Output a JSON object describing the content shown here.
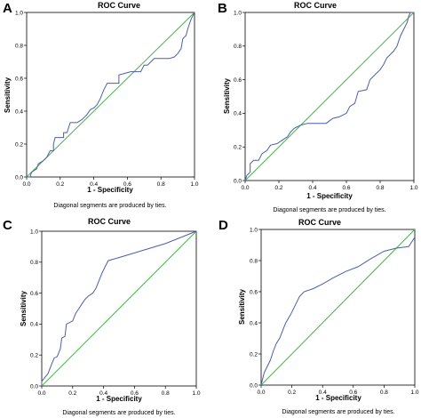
{
  "chart_data": [
    {
      "panel": "A",
      "type": "line",
      "title": "ROC Curve",
      "xlabel": "1 - Specificity",
      "ylabel": "Sensitivity",
      "note": "Diagonal segments are produced by ties.",
      "xlim": [
        0,
        1
      ],
      "ylim": [
        0,
        1
      ],
      "xticks": [
        "0.0",
        "0.2",
        "0.4",
        "0.6",
        "0.8",
        "1.0"
      ],
      "yticks": [
        "0.0",
        "0.2",
        "0.4",
        "0.6",
        "0.8",
        "1.0"
      ],
      "reference_color": "#4caf50",
      "curve_color": "#4a5fa8",
      "roc": [
        [
          0,
          0
        ],
        [
          0.02,
          0
        ],
        [
          0.03,
          0.03
        ],
        [
          0.06,
          0.05
        ],
        [
          0.07,
          0.08
        ],
        [
          0.1,
          0.1
        ],
        [
          0.12,
          0.12
        ],
        [
          0.14,
          0.16
        ],
        [
          0.16,
          0.16
        ],
        [
          0.16,
          0.2
        ],
        [
          0.17,
          0.24
        ],
        [
          0.22,
          0.24
        ],
        [
          0.22,
          0.27
        ],
        [
          0.24,
          0.27
        ],
        [
          0.26,
          0.33
        ],
        [
          0.3,
          0.33
        ],
        [
          0.33,
          0.35
        ],
        [
          0.36,
          0.38
        ],
        [
          0.38,
          0.41
        ],
        [
          0.4,
          0.42
        ],
        [
          0.42,
          0.44
        ],
        [
          0.44,
          0.48
        ],
        [
          0.46,
          0.53
        ],
        [
          0.47,
          0.55
        ],
        [
          0.48,
          0.57
        ],
        [
          0.55,
          0.57
        ],
        [
          0.55,
          0.62
        ],
        [
          0.62,
          0.64
        ],
        [
          0.68,
          0.64
        ],
        [
          0.7,
          0.68
        ],
        [
          0.72,
          0.68
        ],
        [
          0.76,
          0.72
        ],
        [
          0.8,
          0.72
        ],
        [
          0.85,
          0.72
        ],
        [
          0.88,
          0.73
        ],
        [
          0.9,
          0.75
        ],
        [
          0.92,
          0.78
        ],
        [
          0.93,
          0.84
        ],
        [
          0.95,
          0.86
        ],
        [
          0.96,
          0.9
        ],
        [
          0.97,
          0.93
        ],
        [
          0.98,
          0.96
        ],
        [
          0.99,
          0.98
        ],
        [
          1,
          1
        ]
      ]
    },
    {
      "panel": "B",
      "type": "line",
      "title": "ROC Curve",
      "xlabel": "1 - Specificity",
      "ylabel": "Sensitivity",
      "note": "Diagonal segments are produced by ties.",
      "xlim": [
        0,
        1
      ],
      "ylim": [
        0,
        1
      ],
      "xticks": [
        "0.0",
        "0.2",
        "0.4",
        "0.6",
        "0.8",
        "1.0"
      ],
      "yticks": [
        "0.0",
        "0.2",
        "0.4",
        "0.6",
        "0.8",
        "1.0"
      ],
      "reference_color": "#4caf50",
      "curve_color": "#4a5fa8",
      "roc": [
        [
          0,
          0
        ],
        [
          0.01,
          0.03
        ],
        [
          0.03,
          0.05
        ],
        [
          0.03,
          0.1
        ],
        [
          0.05,
          0.12
        ],
        [
          0.08,
          0.12
        ],
        [
          0.1,
          0.16
        ],
        [
          0.13,
          0.18
        ],
        [
          0.15,
          0.21
        ],
        [
          0.19,
          0.22
        ],
        [
          0.22,
          0.24
        ],
        [
          0.25,
          0.26
        ],
        [
          0.27,
          0.29
        ],
        [
          0.29,
          0.31
        ],
        [
          0.33,
          0.33
        ],
        [
          0.37,
          0.34
        ],
        [
          0.48,
          0.34
        ],
        [
          0.52,
          0.37
        ],
        [
          0.56,
          0.38
        ],
        [
          0.6,
          0.4
        ],
        [
          0.62,
          0.44
        ],
        [
          0.65,
          0.46
        ],
        [
          0.67,
          0.53
        ],
        [
          0.72,
          0.54
        ],
        [
          0.74,
          0.6
        ],
        [
          0.77,
          0.63
        ],
        [
          0.8,
          0.66
        ],
        [
          0.82,
          0.69
        ],
        [
          0.84,
          0.73
        ],
        [
          0.88,
          0.77
        ],
        [
          0.9,
          0.8
        ],
        [
          0.92,
          0.86
        ],
        [
          0.94,
          0.9
        ],
        [
          0.96,
          0.94
        ],
        [
          0.97,
          0.98
        ],
        [
          0.98,
          1
        ],
        [
          1,
          1
        ]
      ]
    },
    {
      "panel": "C",
      "type": "line",
      "title": "ROC Curve",
      "xlabel": "1 - Specificity",
      "ylabel": "Sensitivity",
      "note": "Diagonal segments are produced by ties.",
      "xlim": [
        0,
        1
      ],
      "ylim": [
        0,
        1
      ],
      "xticks": [
        "0.0",
        "0.2",
        "0.4",
        "0.6",
        "0.8",
        "1.0"
      ],
      "yticks": [
        "0.0",
        "0.2",
        "0.4",
        "0.6",
        "0.8",
        "1.0"
      ],
      "reference_color": "#4caf50",
      "curve_color": "#4a5fa8",
      "roc": [
        [
          0,
          0
        ],
        [
          0,
          0.03
        ],
        [
          0.04,
          0.08
        ],
        [
          0.06,
          0.13
        ],
        [
          0.08,
          0.18
        ],
        [
          0.1,
          0.19
        ],
        [
          0.12,
          0.24
        ],
        [
          0.13,
          0.31
        ],
        [
          0.15,
          0.32
        ],
        [
          0.16,
          0.4
        ],
        [
          0.2,
          0.42
        ],
        [
          0.22,
          0.47
        ],
        [
          0.24,
          0.5
        ],
        [
          0.26,
          0.53
        ],
        [
          0.28,
          0.56
        ],
        [
          0.3,
          0.58
        ],
        [
          0.33,
          0.6
        ],
        [
          0.35,
          0.63
        ],
        [
          0.37,
          0.68
        ],
        [
          0.39,
          0.73
        ],
        [
          0.41,
          0.77
        ],
        [
          0.43,
          0.81
        ],
        [
          0.5,
          0.83
        ],
        [
          0.6,
          0.86
        ],
        [
          0.8,
          0.92
        ],
        [
          1,
          1
        ]
      ]
    },
    {
      "panel": "D",
      "type": "line",
      "title": "ROC Curve",
      "xlabel": "1 - Specificity",
      "ylabel": "Sensitivity",
      "note": "Diagonal segments are produced by ties.",
      "xlim": [
        0,
        1
      ],
      "ylim": [
        0,
        1
      ],
      "xticks": [
        "0.0",
        "0.2",
        "0.4",
        "0.6",
        "0.8",
        "1.0"
      ],
      "yticks": [
        "0.0",
        "0.2",
        "0.4",
        "0.6",
        "0.8",
        "1.0"
      ],
      "reference_color": "#4caf50",
      "curve_color": "#4a5fa8",
      "roc": [
        [
          0,
          0
        ],
        [
          0.01,
          0.04
        ],
        [
          0.02,
          0.08
        ],
        [
          0.04,
          0.12
        ],
        [
          0.06,
          0.16
        ],
        [
          0.08,
          0.22
        ],
        [
          0.1,
          0.27
        ],
        [
          0.12,
          0.3
        ],
        [
          0.14,
          0.35
        ],
        [
          0.16,
          0.4
        ],
        [
          0.19,
          0.45
        ],
        [
          0.22,
          0.51
        ],
        [
          0.25,
          0.57
        ],
        [
          0.28,
          0.6
        ],
        [
          0.34,
          0.62
        ],
        [
          0.4,
          0.65
        ],
        [
          0.47,
          0.69
        ],
        [
          0.55,
          0.73
        ],
        [
          0.63,
          0.76
        ],
        [
          0.71,
          0.81
        ],
        [
          0.8,
          0.86
        ],
        [
          0.88,
          0.88
        ],
        [
          0.96,
          0.89
        ],
        [
          1,
          0.95
        ]
      ]
    }
  ]
}
